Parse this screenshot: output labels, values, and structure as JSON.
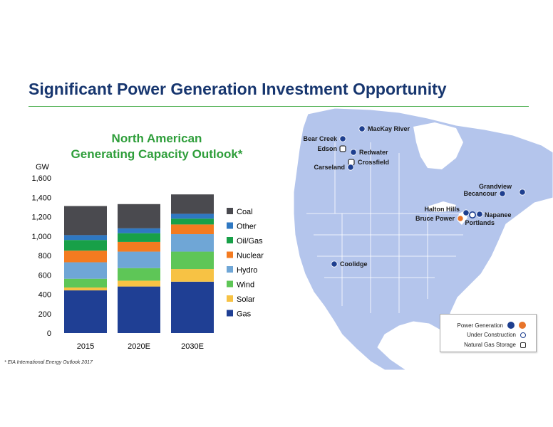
{
  "page": {
    "title": "Significant Power Generation Investment Opportunity",
    "footnote": "* EIA International Energy Outlook 2017"
  },
  "chart_data": {
    "type": "bar",
    "stacked": true,
    "title_line1": "North American",
    "title_line2": "Generating Capacity Outlook*",
    "ylabel": "GW",
    "ylim": [
      0,
      1600
    ],
    "yticks": [
      "0",
      "200",
      "400",
      "600",
      "800",
      "1,000",
      "1,200",
      "1,400",
      "1,600"
    ],
    "ytick_values": [
      0,
      200,
      400,
      600,
      800,
      1000,
      1200,
      1400,
      1600
    ],
    "categories": [
      "2015",
      "2020E",
      "2030E"
    ],
    "grid": false,
    "legend_position": "right",
    "series": [
      {
        "name": "Gas",
        "color": "#1f3f94",
        "values": [
          440,
          480,
          530
        ]
      },
      {
        "name": "Solar",
        "color": "#f7c244",
        "values": [
          30,
          60,
          130
        ]
      },
      {
        "name": "Wind",
        "color": "#5ec657",
        "values": [
          90,
          130,
          180
        ]
      },
      {
        "name": "Hydro",
        "color": "#6fa6d6",
        "values": [
          170,
          170,
          180
        ]
      },
      {
        "name": "Nuclear",
        "color": "#f47b20",
        "values": [
          120,
          100,
          100
        ]
      },
      {
        "name": "Oil/Gas",
        "color": "#18a048",
        "values": [
          110,
          90,
          60
        ]
      },
      {
        "name": "Other",
        "color": "#2f78c2",
        "values": [
          50,
          50,
          50
        ]
      },
      {
        "name": "Coal",
        "color": "#4a4a4f",
        "values": [
          300,
          250,
          200
        ]
      }
    ]
  },
  "map": {
    "land_color": "#b4c5ec",
    "marker_color": "#1e3f8f",
    "locations": [
      {
        "name": "MacKay River",
        "type": "generation"
      },
      {
        "name": "Bear Creek",
        "type": "generation"
      },
      {
        "name": "Edson",
        "type": "storage"
      },
      {
        "name": "Redwater",
        "type": "generation"
      },
      {
        "name": "Crossfield",
        "type": "storage"
      },
      {
        "name": "Carseland",
        "type": "generation"
      },
      {
        "name": "Grandview",
        "type": "generation"
      },
      {
        "name": "Becancour",
        "type": "generation"
      },
      {
        "name": "Halton Hills",
        "type": "generation"
      },
      {
        "name": "Bruce Power",
        "type": "nuclear"
      },
      {
        "name": "Napanee",
        "type": "under-construction"
      },
      {
        "name": "Portlands",
        "type": "generation"
      },
      {
        "name": "Coolidge",
        "type": "generation"
      }
    ],
    "legend": {
      "generation": "Power Generation",
      "construction": "Under Construction",
      "storage": "Natural Gas Storage"
    }
  }
}
